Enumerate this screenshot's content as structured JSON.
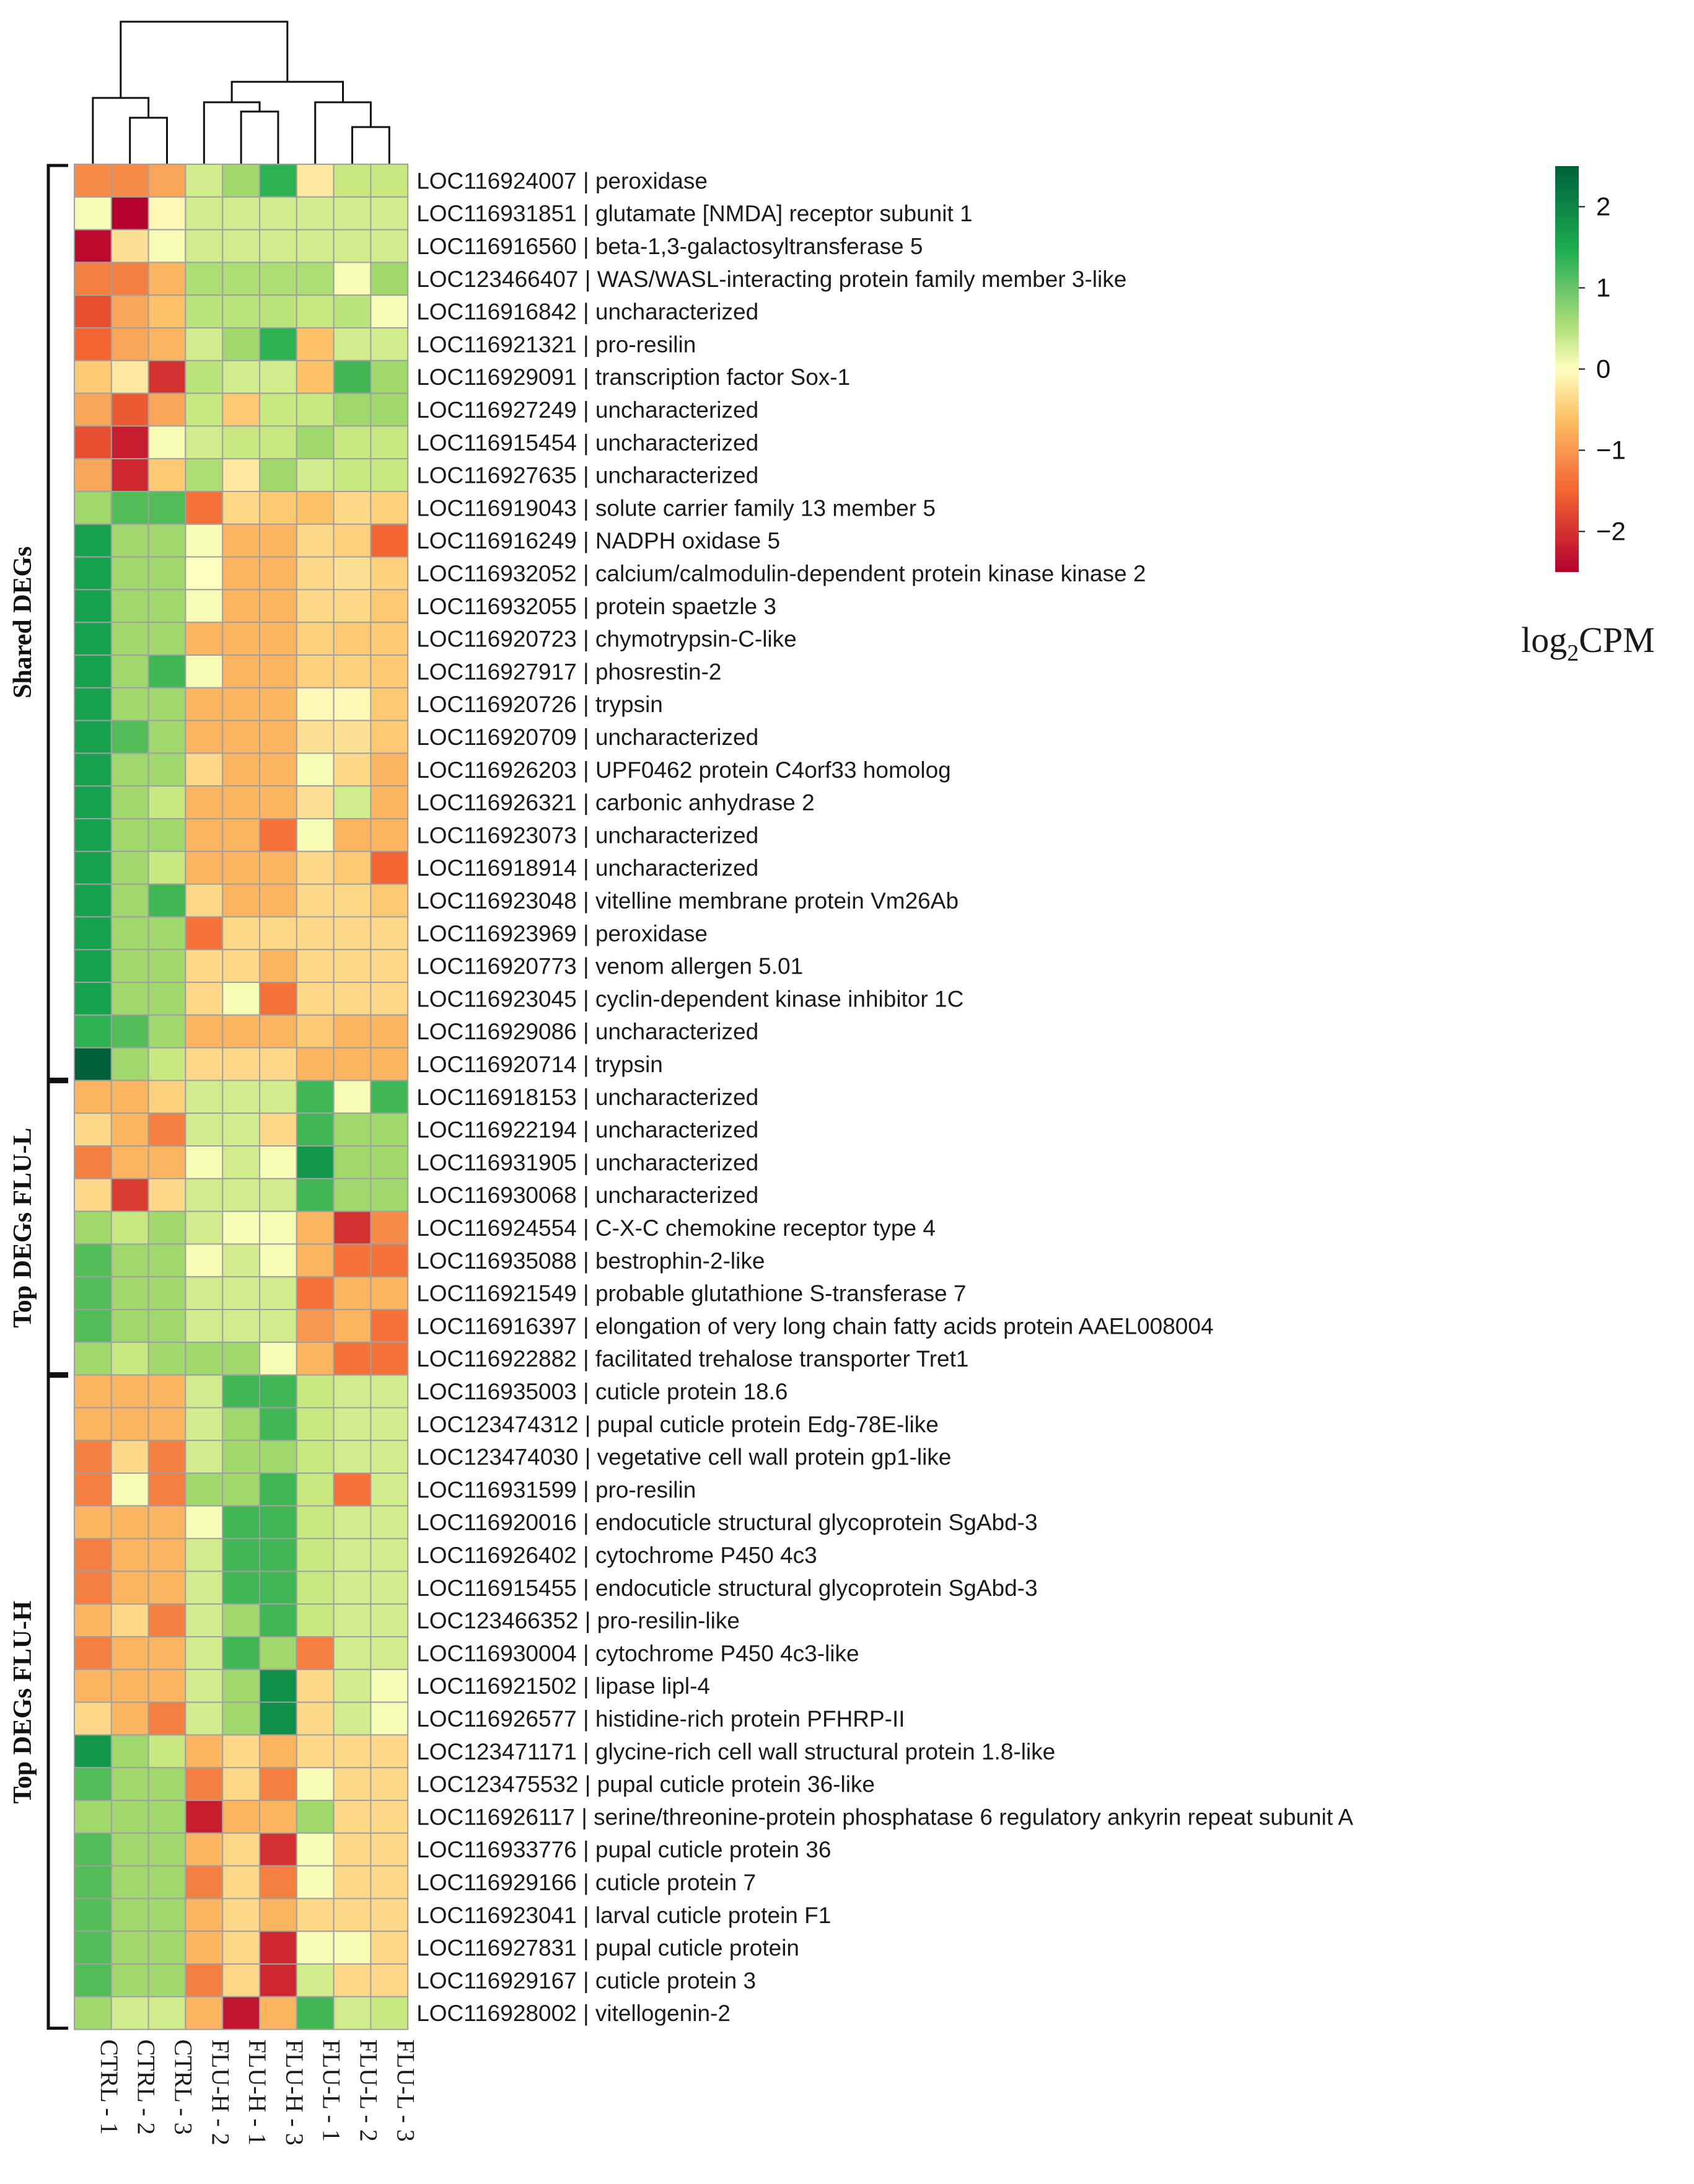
{
  "chart_data": {
    "type": "heatmap",
    "title": "",
    "colorbar": {
      "title_main": "log",
      "title_sub": "2",
      "title_rest": "CPM",
      "ticks": [
        2,
        1,
        0,
        -1,
        -2
      ],
      "tick_labels": [
        "2",
        "1",
        "0",
        "−1",
        "−2"
      ],
      "range": [
        -2.5,
        2.5
      ]
    },
    "colors": {
      "low": "#b5002e",
      "mid": "#ffffc0",
      "high": "#00603a",
      "grid": "#a0a0a0",
      "text": "#1a1a1a"
    },
    "columns": [
      "CTRL - 1",
      "CTRL - 2",
      "CTRL - 3",
      "FLU-H - 2",
      "FLU-H - 1",
      "FLU-H - 3",
      "FLU-L - 1",
      "FLU-L - 2",
      "FLU-L - 3"
    ],
    "groups": [
      {
        "label": "Shared DEGs",
        "start": 0,
        "end": 27
      },
      {
        "label": "Top DEGs  FLU-L",
        "start": 28,
        "end": 36
      },
      {
        "label": "Top DEGs FLU-H",
        "start": 37,
        "end": 56
      }
    ],
    "rows": [
      {
        "label": "LOC116924007 | peroxidase",
        "values": [
          -1.2,
          -1.2,
          -1.0,
          0.5,
          0.9,
          1.6,
          -0.3,
          0.6,
          0.6
        ]
      },
      {
        "label": "LOC116931851 | glutamate [NMDA] receptor subunit 1",
        "values": [
          0.1,
          -2.5,
          -0.1,
          0.5,
          0.5,
          0.5,
          0.5,
          0.5,
          0.5
        ]
      },
      {
        "label": "LOC116916560 | beta-1,3-galactosyltransferase 5",
        "values": [
          -2.4,
          -0.4,
          0.1,
          0.5,
          0.5,
          0.5,
          0.5,
          0.5,
          0.5
        ]
      },
      {
        "label": "LOC123466407 | WAS/WASL-interacting protein family member 3-like",
        "values": [
          -1.3,
          -1.3,
          -0.9,
          0.8,
          0.8,
          0.8,
          0.8,
          0.1,
          0.9
        ]
      },
      {
        "label": "LOC116916842 | uncharacterized",
        "values": [
          -1.7,
          -1.0,
          -0.8,
          0.7,
          0.7,
          0.7,
          0.6,
          0.7,
          0.1
        ]
      },
      {
        "label": "LOC116921321 | pro-resilin",
        "values": [
          -1.5,
          -1.0,
          -0.9,
          0.5,
          0.9,
          1.6,
          -0.8,
          0.5,
          0.5
        ]
      },
      {
        "label": "LOC116929091 | transcription factor Sox-1",
        "values": [
          -0.7,
          -0.3,
          -2.0,
          0.7,
          0.5,
          0.5,
          -0.8,
          1.5,
          0.9
        ]
      },
      {
        "label": "LOC116927249 | uncharacterized",
        "values": [
          -1.0,
          -1.6,
          -1.0,
          0.6,
          -0.7,
          0.6,
          0.6,
          0.9,
          0.9
        ]
      },
      {
        "label": "LOC116915454 | uncharacterized",
        "values": [
          -1.7,
          -2.2,
          0.1,
          0.5,
          0.6,
          0.6,
          0.9,
          0.6,
          0.6
        ]
      },
      {
        "label": "LOC116927635 | uncharacterized",
        "values": [
          -1.0,
          -2.1,
          -0.7,
          0.8,
          -0.3,
          0.9,
          0.5,
          0.6,
          0.6
        ]
      },
      {
        "label": "LOC116919043 | solute carrier family 13 member 5",
        "values": [
          0.9,
          1.4,
          1.4,
          -1.4,
          -0.5,
          -0.7,
          -0.8,
          -0.5,
          -0.6
        ]
      },
      {
        "label": "LOC116916249 | NADPH oxidase 5",
        "values": [
          1.8,
          0.9,
          0.9,
          0.1,
          -0.9,
          -0.9,
          -0.5,
          -0.6,
          -1.5
        ]
      },
      {
        "label": "LOC116932052 | calcium/calmodulin-dependent protein kinase kinase 2",
        "values": [
          1.8,
          0.9,
          0.9,
          0.0,
          -0.9,
          -0.9,
          -0.5,
          -0.4,
          -0.6
        ]
      },
      {
        "label": "LOC116932055 | protein spaetzle 3",
        "values": [
          1.8,
          0.9,
          0.9,
          0.1,
          -0.9,
          -0.9,
          -0.5,
          -0.5,
          -0.7
        ]
      },
      {
        "label": "LOC116920723 | chymotrypsin-C-like",
        "values": [
          1.8,
          0.9,
          0.9,
          -0.9,
          -0.9,
          -0.9,
          -0.6,
          -0.7,
          -0.7
        ]
      },
      {
        "label": "LOC116927917 | phosrestin-2",
        "values": [
          1.8,
          0.9,
          1.5,
          0.1,
          -0.9,
          -0.9,
          -0.6,
          -0.6,
          -0.7
        ]
      },
      {
        "label": "LOC116920726 | trypsin",
        "values": [
          1.8,
          0.9,
          0.9,
          -0.9,
          -0.9,
          -0.9,
          -0.1,
          -0.1,
          -0.7
        ]
      },
      {
        "label": "LOC116920709 | uncharacterized",
        "values": [
          1.8,
          1.4,
          0.9,
          -0.9,
          -0.9,
          -0.9,
          -0.4,
          -0.4,
          -0.7
        ]
      },
      {
        "label": "LOC116926203 | UPF0462 protein C4orf33 homolog",
        "values": [
          1.8,
          0.9,
          0.9,
          -0.5,
          -0.9,
          -0.9,
          0.1,
          -0.5,
          -0.9
        ]
      },
      {
        "label": "LOC116926321 | carbonic anhydrase 2",
        "values": [
          1.8,
          0.9,
          0.6,
          -0.9,
          -0.9,
          -0.9,
          -0.4,
          0.5,
          -0.9
        ]
      },
      {
        "label": "LOC116923073 | uncharacterized",
        "values": [
          1.8,
          0.9,
          0.9,
          -0.9,
          -0.9,
          -1.4,
          0.1,
          -0.9,
          -0.9
        ]
      },
      {
        "label": "LOC116918914 | uncharacterized",
        "values": [
          1.8,
          0.9,
          0.6,
          -0.9,
          -0.9,
          -0.9,
          -0.5,
          -0.7,
          -1.5
        ]
      },
      {
        "label": "LOC116923048 | vitelline membrane protein Vm26Ab",
        "values": [
          1.8,
          0.9,
          1.5,
          -0.5,
          -0.9,
          -0.9,
          -0.5,
          -0.5,
          -0.7
        ]
      },
      {
        "label": "LOC116923969 | peroxidase",
        "values": [
          1.8,
          0.9,
          0.9,
          -1.4,
          -0.5,
          -0.5,
          -0.5,
          -0.5,
          -0.5
        ]
      },
      {
        "label": "LOC116920773 | venom allergen 5.01",
        "values": [
          1.8,
          0.9,
          0.9,
          -0.5,
          -0.5,
          -0.9,
          -0.5,
          -0.5,
          -0.5
        ]
      },
      {
        "label": "LOC116923045 | cyclin-dependent kinase inhibitor 1C",
        "values": [
          1.8,
          0.9,
          0.9,
          -0.5,
          0.1,
          -1.4,
          -0.5,
          -0.5,
          -0.5
        ]
      },
      {
        "label": "LOC116929086 | uncharacterized",
        "values": [
          1.6,
          1.4,
          0.9,
          -0.9,
          -0.9,
          -0.9,
          -0.7,
          -0.9,
          -0.9
        ]
      },
      {
        "label": "LOC116920714 | trypsin",
        "values": [
          2.5,
          0.9,
          0.6,
          -0.5,
          -0.5,
          -0.5,
          -0.9,
          -0.9,
          -0.9
        ]
      },
      {
        "label": "LOC116918153 | uncharacterized",
        "values": [
          -0.9,
          -0.9,
          -0.6,
          0.5,
          0.5,
          0.5,
          1.5,
          0.1,
          1.5
        ]
      },
      {
        "label": "LOC116922194 | uncharacterized",
        "values": [
          -0.5,
          -0.9,
          -1.3,
          0.5,
          0.5,
          -0.5,
          1.5,
          0.9,
          0.9
        ]
      },
      {
        "label": "LOC116931905 | uncharacterized",
        "values": [
          -1.3,
          -0.9,
          -0.9,
          0.1,
          0.5,
          0.1,
          1.9,
          0.9,
          0.9
        ]
      },
      {
        "label": "LOC116930068 | uncharacterized",
        "values": [
          -0.5,
          -1.9,
          -0.5,
          0.5,
          0.5,
          0.5,
          1.5,
          0.9,
          0.9
        ]
      },
      {
        "label": "LOC116924554 | C-X-C chemokine receptor type 4",
        "values": [
          0.9,
          0.6,
          0.9,
          0.5,
          0.1,
          0.1,
          -0.9,
          -2.0,
          -1.2
        ]
      },
      {
        "label": "LOC116935088 | bestrophin-2-like",
        "values": [
          1.4,
          0.9,
          0.9,
          0.1,
          0.5,
          0.1,
          -0.9,
          -1.4,
          -1.4
        ]
      },
      {
        "label": "LOC116921549 | probable glutathione S-transferase 7",
        "values": [
          1.4,
          0.9,
          0.9,
          0.5,
          0.5,
          0.5,
          -1.4,
          -0.9,
          -0.9
        ]
      },
      {
        "label": "LOC116916397 | elongation of very long chain fatty acids protein AAEL008004",
        "values": [
          1.4,
          0.9,
          0.9,
          0.5,
          0.5,
          0.5,
          -1.1,
          -0.9,
          -1.4
        ]
      },
      {
        "label": "LOC116922882 | facilitated trehalose transporter Tret1",
        "values": [
          0.9,
          0.6,
          0.9,
          0.9,
          0.9,
          0.1,
          -0.9,
          -1.4,
          -1.4
        ]
      },
      {
        "label": "LOC116935003 | cuticle protein 18.6",
        "values": [
          -0.9,
          -0.9,
          -0.9,
          0.5,
          1.5,
          1.5,
          0.6,
          0.5,
          0.5
        ]
      },
      {
        "label": "LOC123474312 | pupal cuticle protein Edg-78E-like",
        "values": [
          -0.9,
          -0.9,
          -0.9,
          0.5,
          0.9,
          1.5,
          0.6,
          0.5,
          0.5
        ]
      },
      {
        "label": "LOC123474030 | vegetative cell wall protein gp1-like",
        "values": [
          -1.3,
          -0.5,
          -1.3,
          0.5,
          0.9,
          0.9,
          0.6,
          0.5,
          0.5
        ]
      },
      {
        "label": "LOC116931599 | pro-resilin",
        "values": [
          -1.3,
          0.1,
          -1.3,
          0.9,
          0.9,
          1.5,
          0.6,
          -1.4,
          0.5
        ]
      },
      {
        "label": "LOC116920016 | endocuticle structural glycoprotein SgAbd-3",
        "values": [
          -0.9,
          -0.9,
          -0.9,
          0.1,
          1.5,
          1.5,
          0.6,
          0.5,
          0.5
        ]
      },
      {
        "label": "LOC116926402 | cytochrome P450 4c3",
        "values": [
          -1.3,
          -0.9,
          -0.9,
          0.5,
          1.5,
          1.5,
          0.6,
          0.5,
          0.5
        ]
      },
      {
        "label": "LOC116915455 | endocuticle structural glycoprotein SgAbd-3",
        "values": [
          -1.3,
          -0.9,
          -0.9,
          0.5,
          1.5,
          1.5,
          0.6,
          0.5,
          0.5
        ]
      },
      {
        "label": "LOC123466352 | pro-resilin-like",
        "values": [
          -0.9,
          -0.5,
          -1.3,
          0.5,
          0.9,
          1.5,
          0.6,
          0.5,
          0.5
        ]
      },
      {
        "label": "LOC116930004 | cytochrome P450 4c3-like",
        "values": [
          -1.3,
          -0.9,
          -0.9,
          0.5,
          1.5,
          0.9,
          -1.3,
          0.5,
          0.5
        ]
      },
      {
        "label": "LOC116921502 | lipase lipl-4",
        "values": [
          -0.9,
          -0.9,
          -0.9,
          0.5,
          0.9,
          2.0,
          -0.5,
          0.5,
          0.1
        ]
      },
      {
        "label": "LOC116926577 | histidine-rich protein PFHRP-II",
        "values": [
          -0.5,
          -0.9,
          -1.3,
          0.5,
          0.9,
          2.0,
          -0.5,
          0.5,
          0.1
        ]
      },
      {
        "label": "LOC123471171 | glycine-rich cell wall structural protein 1.8-like",
        "values": [
          1.9,
          0.9,
          0.6,
          -0.9,
          -0.5,
          -0.9,
          -0.5,
          -0.5,
          -0.5
        ]
      },
      {
        "label": "LOC123475532 | pupal cuticle protein 36-like",
        "values": [
          1.4,
          0.9,
          0.9,
          -1.3,
          -0.5,
          -1.3,
          0.1,
          -0.5,
          -0.5
        ]
      },
      {
        "label": "LOC116926117 | serine/threonine-protein phosphatase 6 regulatory ankyrin repeat subunit A",
        "values": [
          0.9,
          0.9,
          0.9,
          -2.2,
          -0.9,
          -0.9,
          0.9,
          -0.5,
          -0.5
        ]
      },
      {
        "label": "LOC116933776 | pupal cuticle protein 36",
        "values": [
          1.4,
          0.9,
          0.9,
          -0.9,
          -0.5,
          -2.0,
          0.1,
          -0.5,
          -0.5
        ]
      },
      {
        "label": "LOC116929166 | cuticle protein 7",
        "values": [
          1.4,
          0.9,
          0.9,
          -1.3,
          -0.5,
          -1.3,
          0.1,
          -0.5,
          -0.5
        ]
      },
      {
        "label": "LOC116923041 | larval cuticle protein F1",
        "values": [
          1.4,
          0.9,
          0.9,
          -0.9,
          -0.5,
          -0.9,
          -0.5,
          -0.5,
          -0.5
        ]
      },
      {
        "label": "LOC116927831 | pupal cuticle protein",
        "values": [
          1.4,
          0.9,
          0.9,
          -0.9,
          -0.5,
          -2.1,
          0.1,
          0.1,
          -0.5
        ]
      },
      {
        "label": "LOC116929167 | cuticle protein 3",
        "values": [
          1.4,
          0.9,
          0.9,
          -1.3,
          -0.5,
          -2.1,
          0.5,
          -0.5,
          -0.5
        ]
      },
      {
        "label": "LOC116928002 | vitellogenin-2",
        "values": [
          0.9,
          0.5,
          0.5,
          -0.9,
          -2.3,
          -0.9,
          1.5,
          0.5,
          0.6
        ]
      }
    ]
  }
}
